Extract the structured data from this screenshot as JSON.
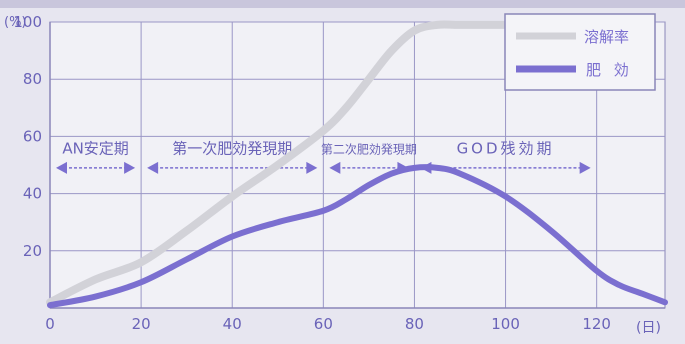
{
  "chart_data": {
    "type": "line",
    "y_unit_label": "(%)",
    "x_unit_label": "(日)",
    "xlim": [
      0,
      135
    ],
    "ylim": [
      0,
      100
    ],
    "x_ticks": [
      0,
      20,
      40,
      60,
      80,
      100,
      120
    ],
    "y_ticks": [
      20,
      40,
      60,
      80,
      100
    ],
    "grid": true,
    "legend_position": "top-right",
    "series": [
      {
        "name": "溶解率",
        "color": "#d2d2d8",
        "points": [
          [
            0,
            2
          ],
          [
            10,
            10
          ],
          [
            20,
            16
          ],
          [
            30,
            27
          ],
          [
            40,
            39
          ],
          [
            50,
            50
          ],
          [
            60,
            62
          ],
          [
            65,
            70
          ],
          [
            70,
            80
          ],
          [
            75,
            90
          ],
          [
            80,
            97
          ],
          [
            85,
            99
          ],
          [
            90,
            99
          ],
          [
            100,
            99
          ]
        ]
      },
      {
        "name": "肥 効",
        "color": "#7b6fd0",
        "points": [
          [
            0,
            1
          ],
          [
            10,
            4
          ],
          [
            20,
            9
          ],
          [
            30,
            17
          ],
          [
            40,
            25
          ],
          [
            50,
            30
          ],
          [
            60,
            34
          ],
          [
            65,
            38
          ],
          [
            70,
            43
          ],
          [
            75,
            47
          ],
          [
            80,
            49
          ],
          [
            85,
            49
          ],
          [
            90,
            47
          ],
          [
            100,
            39
          ],
          [
            110,
            27
          ],
          [
            120,
            13
          ],
          [
            125,
            8
          ],
          [
            130,
            5
          ],
          [
            135,
            2
          ]
        ]
      }
    ],
    "periods": [
      {
        "label": "AN安定期",
        "start": 0,
        "end": 20
      },
      {
        "label": "第一次肥効発現期",
        "start": 20,
        "end": 60
      },
      {
        "label": "第二次肥効発現期",
        "start": 60,
        "end": 80
      },
      {
        "label": "GOD残効期",
        "start": 80,
        "end": 120
      }
    ]
  }
}
